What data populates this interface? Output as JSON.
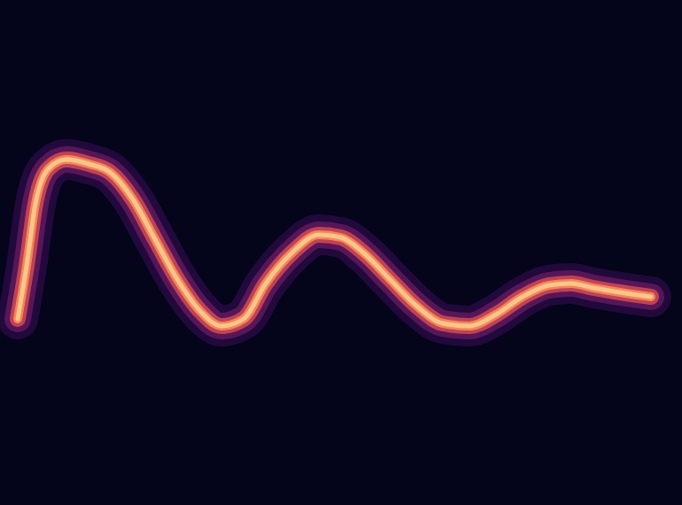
{
  "chart_data": {
    "type": "line",
    "x": [
      20,
      30,
      40,
      55,
      75,
      100,
      125,
      150,
      175,
      200,
      225,
      250,
      275,
      300,
      330,
      360,
      385,
      410,
      440,
      470,
      500,
      530,
      560,
      590,
      620,
      645,
      670,
      700,
      735
    ],
    "values": [
      210,
      270,
      340,
      380,
      390,
      385,
      375,
      345,
      300,
      255,
      220,
      202,
      210,
      250,
      285,
      305,
      302,
      285,
      255,
      225,
      205,
      202,
      215,
      235,
      248,
      250,
      245,
      240,
      235
    ],
    "color": "#ffc58a",
    "xlim": [
      0,
      770
    ],
    "ylim": [
      0,
      570
    ],
    "grid": false,
    "tick_labels": false
  }
}
